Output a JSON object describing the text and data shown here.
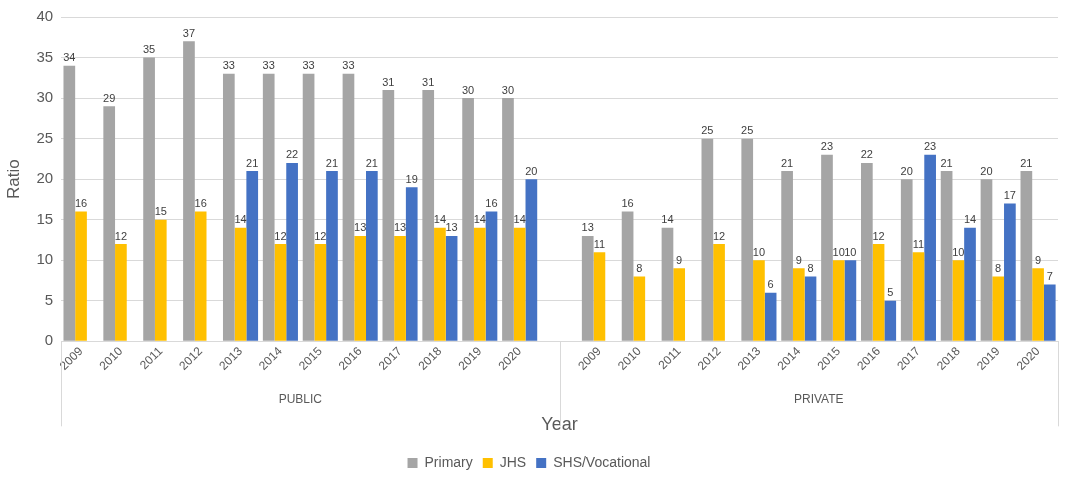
{
  "chart_data": {
    "type": "bar",
    "categories": [
      "2009",
      "2010",
      "2011",
      "2012",
      "2013",
      "2014",
      "2015",
      "2016",
      "2017",
      "2018",
      "2019",
      "2020",
      null,
      "2009",
      "2010",
      "2011",
      "2012",
      "2013",
      "2014",
      "2015",
      "2016",
      "2017",
      "2018",
      "2019",
      "2020"
    ],
    "series": [
      {
        "name": "Primary",
        "color": "#a5a5a5",
        "values": [
          34,
          29,
          35,
          37,
          33,
          33,
          33,
          33,
          31,
          31,
          30,
          30,
          null,
          13,
          16,
          14,
          25,
          25,
          21,
          23,
          22,
          20,
          21,
          20,
          21
        ]
      },
      {
        "name": "JHS",
        "color": "#ffc000",
        "values": [
          16,
          12,
          15,
          16,
          14,
          12,
          12,
          13,
          13,
          14,
          14,
          14,
          null,
          11,
          8,
          9,
          12,
          10,
          9,
          10,
          12,
          11,
          10,
          8,
          9
        ]
      },
      {
        "name": "SHS/Vocational",
        "color": "#4472c4",
        "values": [
          null,
          null,
          null,
          null,
          21,
          22,
          21,
          21,
          19,
          13,
          16,
          20,
          null,
          null,
          null,
          null,
          null,
          6,
          8,
          10,
          5,
          23,
          14,
          17,
          7
        ]
      }
    ],
    "xlabel": "Year",
    "ylabel": "Ratio",
    "ylim": [
      0,
      40
    ],
    "yticks": [
      0,
      5,
      10,
      15,
      20,
      25,
      30,
      35,
      40
    ],
    "grid": "y",
    "legend": "bottom",
    "data_labels": true,
    "annotations": [
      "PUBLIC",
      "PRIVATE"
    ]
  }
}
